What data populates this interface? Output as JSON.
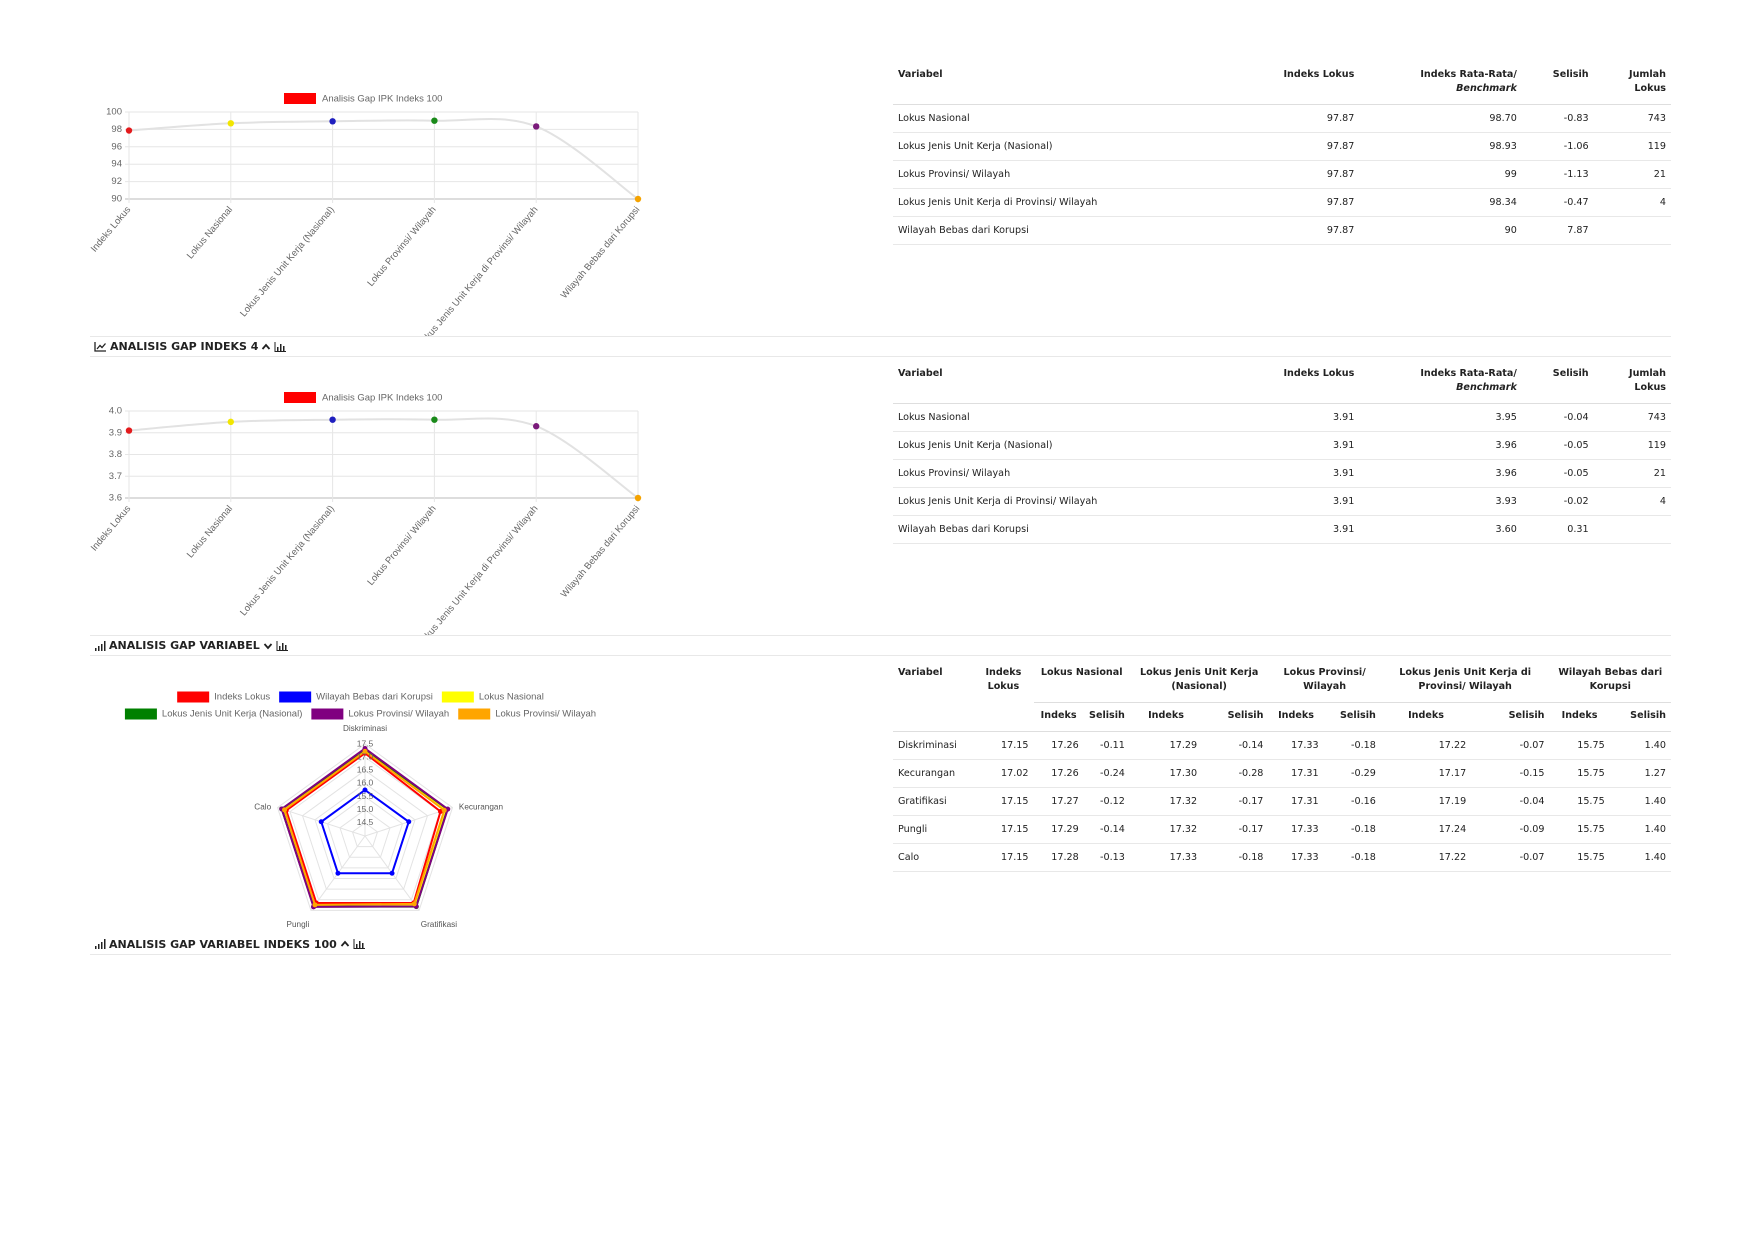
{
  "chart_data": [
    {
      "type": "line",
      "categories": [
        "Indeks Lokus",
        "Lokus Nasional",
        "Lokus Jenis Unit Kerja (Nasional)",
        "Lokus Provinsi/ Wilayah",
        "Lokus Jenis Unit Kerja di Provinsi/ Wilayah",
        "Wilayah Bebas dari Korupsi"
      ],
      "series": [
        {
          "name": "Analisis Gap IPK Indeks 100",
          "color": "#ff0000",
          "line_color": "#e2e2e2",
          "point_colors": [
            "#e31a1c",
            "#f2e600",
            "#1f1fbf",
            "#1a8a1a",
            "#7a1a7a",
            "#f5a300"
          ],
          "values": [
            97.87,
            98.7,
            98.93,
            99,
            98.34,
            90
          ]
        }
      ],
      "ylim": [
        90,
        100
      ],
      "yticks": [
        90,
        92,
        94,
        96,
        98,
        100
      ],
      "grid": true
    },
    {
      "type": "line",
      "categories": [
        "Indeks Lokus",
        "Lokus Nasional",
        "Lokus Jenis Unit Kerja (Nasional)",
        "Lokus Provinsi/ Wilayah",
        "Lokus Jenis Unit Kerja di Provinsi/ Wilayah",
        "Wilayah Bebas dari Korupsi"
      ],
      "series": [
        {
          "name": "Analisis Gap IPK Indeks 100",
          "color": "#ff0000",
          "line_color": "#e2e2e2",
          "point_colors": [
            "#e31a1c",
            "#f2e600",
            "#1f1fbf",
            "#1a8a1a",
            "#7a1a7a",
            "#f5a300"
          ],
          "values": [
            3.91,
            3.95,
            3.96,
            3.96,
            3.93,
            3.6
          ]
        }
      ],
      "ylim": [
        3.6,
        4
      ],
      "yticks": [
        3.6,
        3.7,
        3.8,
        3.9,
        {
          "value": 4,
          "label": "4.0"
        }
      ],
      "grid": true
    },
    {
      "type": "radar",
      "categories": [
        "Diskriminasi",
        "Kecurangan",
        "Gratifikasi",
        "Pungli",
        "Calo"
      ],
      "rlim": [
        14,
        17.5
      ],
      "rticks": [
        14.5,
        {
          "value": 15,
          "label": "15.0"
        },
        15.5,
        {
          "value": 16,
          "label": "16.0"
        },
        16.5,
        {
          "value": 17,
          "label": "17.0"
        },
        17.5
      ],
      "grid": true,
      "series": [
        {
          "name": "Indeks Lokus",
          "color": "#ff0000",
          "values": [
            17.15,
            17.02,
            17.15,
            17.15,
            17.15
          ]
        },
        {
          "name": "Wilayah Bebas dari Korupsi",
          "color": "#0000ff",
          "values": [
            15.75,
            15.75,
            15.75,
            15.75,
            15.75
          ]
        },
        {
          "name": "Lokus Nasional",
          "color": "#ffff00",
          "values": [
            17.26,
            17.26,
            17.27,
            17.29,
            17.28
          ]
        },
        {
          "name": "Lokus Jenis Unit Kerja (Nasional)",
          "color": "#008000",
          "values": [
            17.29,
            17.3,
            17.32,
            17.32,
            17.33
          ]
        },
        {
          "name": "Lokus Provinsi/ Wilayah",
          "color": "#800080",
          "values": [
            17.33,
            17.31,
            17.31,
            17.33,
            17.33
          ]
        },
        {
          "name": "Lokus Provinsi/ Wilayah",
          "color": "#ffa500",
          "values": [
            17.22,
            17.17,
            17.19,
            17.24,
            17.22
          ]
        }
      ]
    }
  ],
  "sections": [
    {
      "title": "ANALISIS GAP INDEKS 4"
    },
    {
      "title": "ANALISIS GAP VARIABEL"
    },
    {
      "title": "ANALISIS GAP VARIABEL INDEKS 100"
    }
  ],
  "tables": [
    {
      "header": [
        "Variabel",
        "Indeks Lokus",
        {
          "text": "Indeks Rata-Rata/",
          "italic": "Benchmark"
        },
        "Selisih",
        "Jumlah Lokus"
      ],
      "rows": [
        [
          "Lokus Nasional",
          "97.87",
          "98.70",
          "-0.83",
          "743"
        ],
        [
          "Lokus Jenis Unit Kerja (Nasional)",
          "97.87",
          "98.93",
          "-1.06",
          "119"
        ],
        [
          "Lokus Provinsi/ Wilayah",
          "97.87",
          "99",
          "-1.13",
          "21"
        ],
        [
          "Lokus Jenis Unit Kerja di Provinsi/ Wilayah",
          "97.87",
          "98.34",
          "-0.47",
          "4"
        ],
        [
          "Wilayah Bebas dari Korupsi",
          "97.87",
          "90",
          "7.87"
        ]
      ]
    },
    {
      "header": [
        "Variabel",
        "Indeks Lokus",
        {
          "text": "Indeks Rata-Rata/",
          "italic": "Benchmark"
        },
        "Selisih",
        "Jumlah Lokus"
      ],
      "rows": [
        [
          "Lokus Nasional",
          "3.91",
          "3.95",
          "-0.04",
          "743"
        ],
        [
          "Lokus Jenis Unit Kerja (Nasional)",
          "3.91",
          "3.96",
          "-0.05",
          "119"
        ],
        [
          "Lokus Provinsi/ Wilayah",
          "3.91",
          "3.96",
          "-0.05",
          "21"
        ],
        [
          "Lokus Jenis Unit Kerja di Provinsi/ Wilayah",
          "3.91",
          "3.93",
          "-0.02",
          "4"
        ],
        [
          "Wilayah Bebas dari Korupsi",
          "3.91",
          "3.60",
          "0.31"
        ]
      ]
    },
    {
      "header": [
        "Variabel",
        "Indeks Lokus",
        "Lokus Nasional",
        "Lokus Jenis Unit Kerja (Nasional)",
        "Lokus Provinsi/ Wilayah",
        "Lokus Jenis Unit Kerja di Provinsi/ Wilayah",
        "Wilayah Bebas dari Korupsi"
      ],
      "subheader": [
        "Indeks",
        "Selisih",
        "Indeks",
        "Selisih",
        "Indeks",
        "Selisih",
        "Indeks",
        "Selisih",
        "Indeks",
        "Selisih"
      ],
      "rows": [
        [
          "Diskriminasi",
          "17.15",
          "17.26",
          "-0.11",
          "17.29",
          "-0.14",
          "17.33",
          "-0.18",
          "17.22",
          "-0.07",
          "15.75",
          "1.40"
        ],
        [
          "Kecurangan",
          "17.02",
          "17.26",
          "-0.24",
          "17.30",
          "-0.28",
          "17.31",
          "-0.29",
          "17.17",
          "-0.15",
          "15.75",
          "1.27"
        ],
        [
          "Gratifikasi",
          "17.15",
          "17.27",
          "-0.12",
          "17.32",
          "-0.17",
          "17.31",
          "-0.16",
          "17.19",
          "-0.04",
          "15.75",
          "1.40"
        ],
        [
          "Pungli",
          "17.15",
          "17.29",
          "-0.14",
          "17.32",
          "-0.17",
          "17.33",
          "-0.18",
          "17.24",
          "-0.09",
          "15.75",
          "1.40"
        ],
        [
          "Calo",
          "17.15",
          "17.28",
          "-0.13",
          "17.33",
          "-0.18",
          "17.33",
          "-0.18",
          "17.22",
          "-0.07",
          "15.75",
          "1.40"
        ]
      ]
    }
  ]
}
